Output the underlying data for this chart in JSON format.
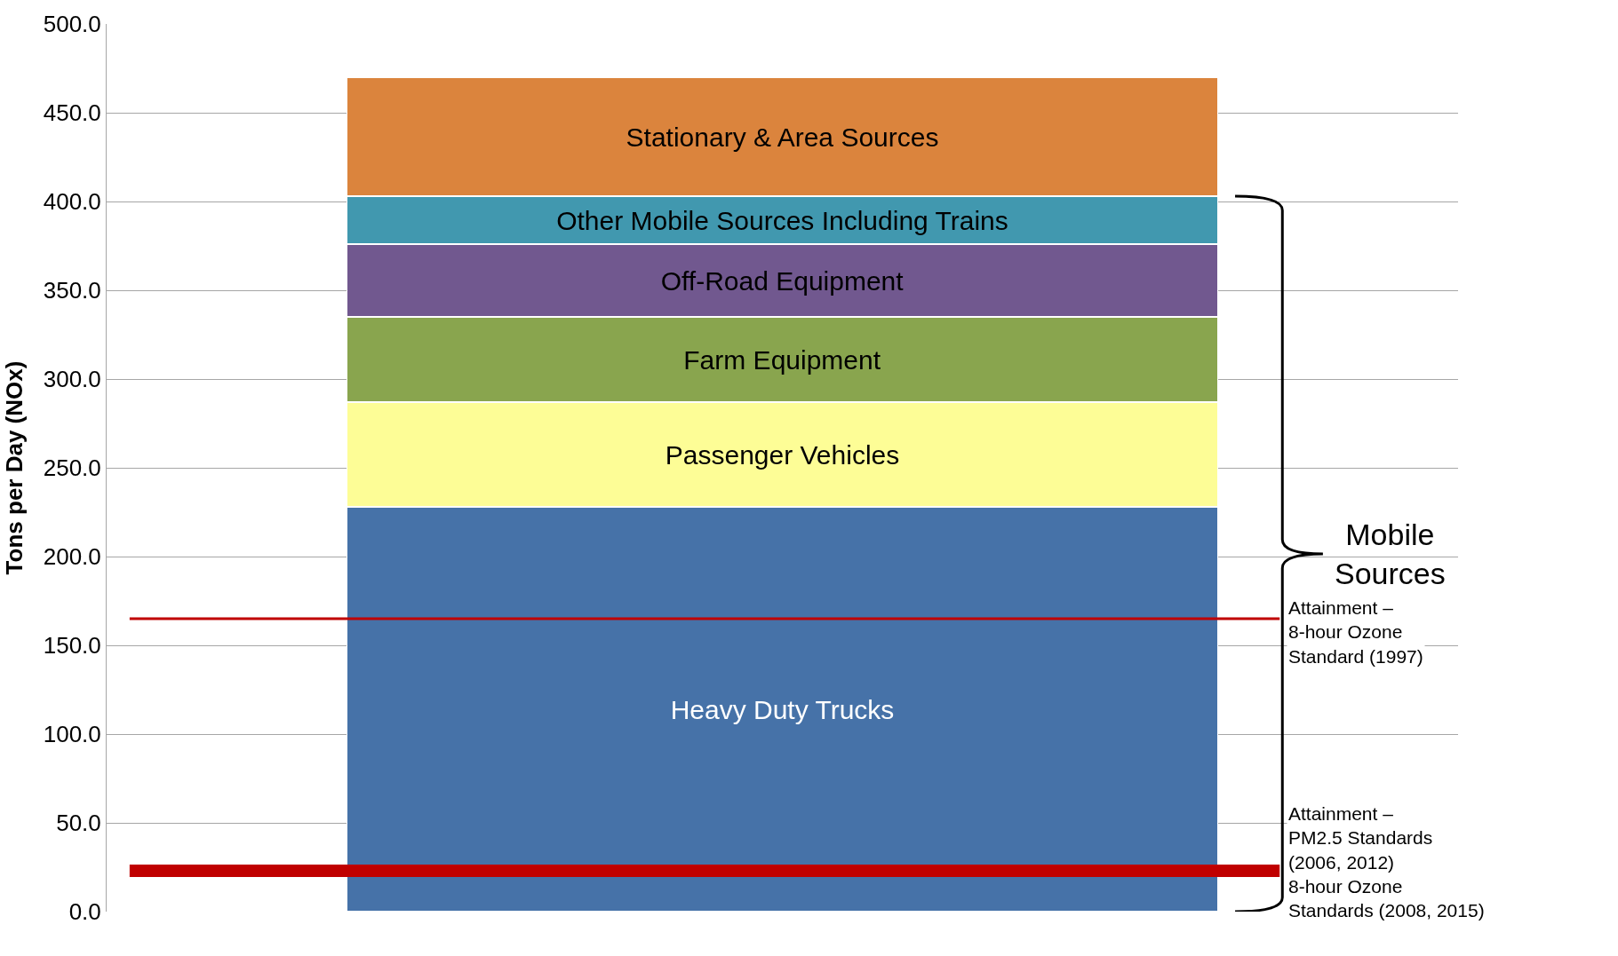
{
  "chart_data": {
    "type": "bar",
    "stacked": true,
    "categories": [
      null
    ],
    "series": [
      {
        "name": "Heavy Duty Trucks",
        "color": "#4672a8",
        "values": [
          228
        ]
      },
      {
        "name": "Passenger Vehicles",
        "color": "#fdfd96",
        "values": [
          59
        ]
      },
      {
        "name": "Farm Equipment",
        "color": "#89a54e",
        "values": [
          48
        ]
      },
      {
        "name": "Off-Road Equipment",
        "color": "#71588f",
        "values": [
          41
        ]
      },
      {
        "name": "Other Mobile Sources Including Trains",
        "color": "#4198af",
        "values": [
          27
        ]
      },
      {
        "name": "Stationary & Area Sources",
        "color": "#db843d",
        "values": [
          67
        ]
      }
    ],
    "ylabel": "Tons per Day (NOx)",
    "ylim": [
      0,
      500
    ],
    "yticks": [
      {
        "value": 0,
        "label": "0.0"
      },
      {
        "value": 50,
        "label": "50.0"
      },
      {
        "value": 100,
        "label": "100.0"
      },
      {
        "value": 150,
        "label": "150.0"
      },
      {
        "value": 200,
        "label": "200.0"
      },
      {
        "value": 250,
        "label": "250.0"
      },
      {
        "value": 300,
        "label": "300.0"
      },
      {
        "value": 350,
        "label": "350.0"
      },
      {
        "value": 400,
        "label": "400.0"
      },
      {
        "value": 450,
        "label": "450.0"
      },
      {
        "value": 500,
        "label": "500.0"
      }
    ],
    "grid": "y",
    "legend": false,
    "ref_lines": [
      {
        "axis": "y",
        "value": 165,
        "label": "Attainment –\n8-hour Ozone\nStandard (1997)",
        "color": "#c00000",
        "line_style": "solid"
      },
      {
        "axis": "y",
        "value": 23,
        "label": "Attainment –\nPM2.5 Standards\n(2006, 2012)\n8-hour Ozone\nStandards (2008, 2015)",
        "color": "#c00000",
        "line_style": "solid"
      }
    ],
    "annotations": [
      "Mobile\nSources"
    ]
  }
}
